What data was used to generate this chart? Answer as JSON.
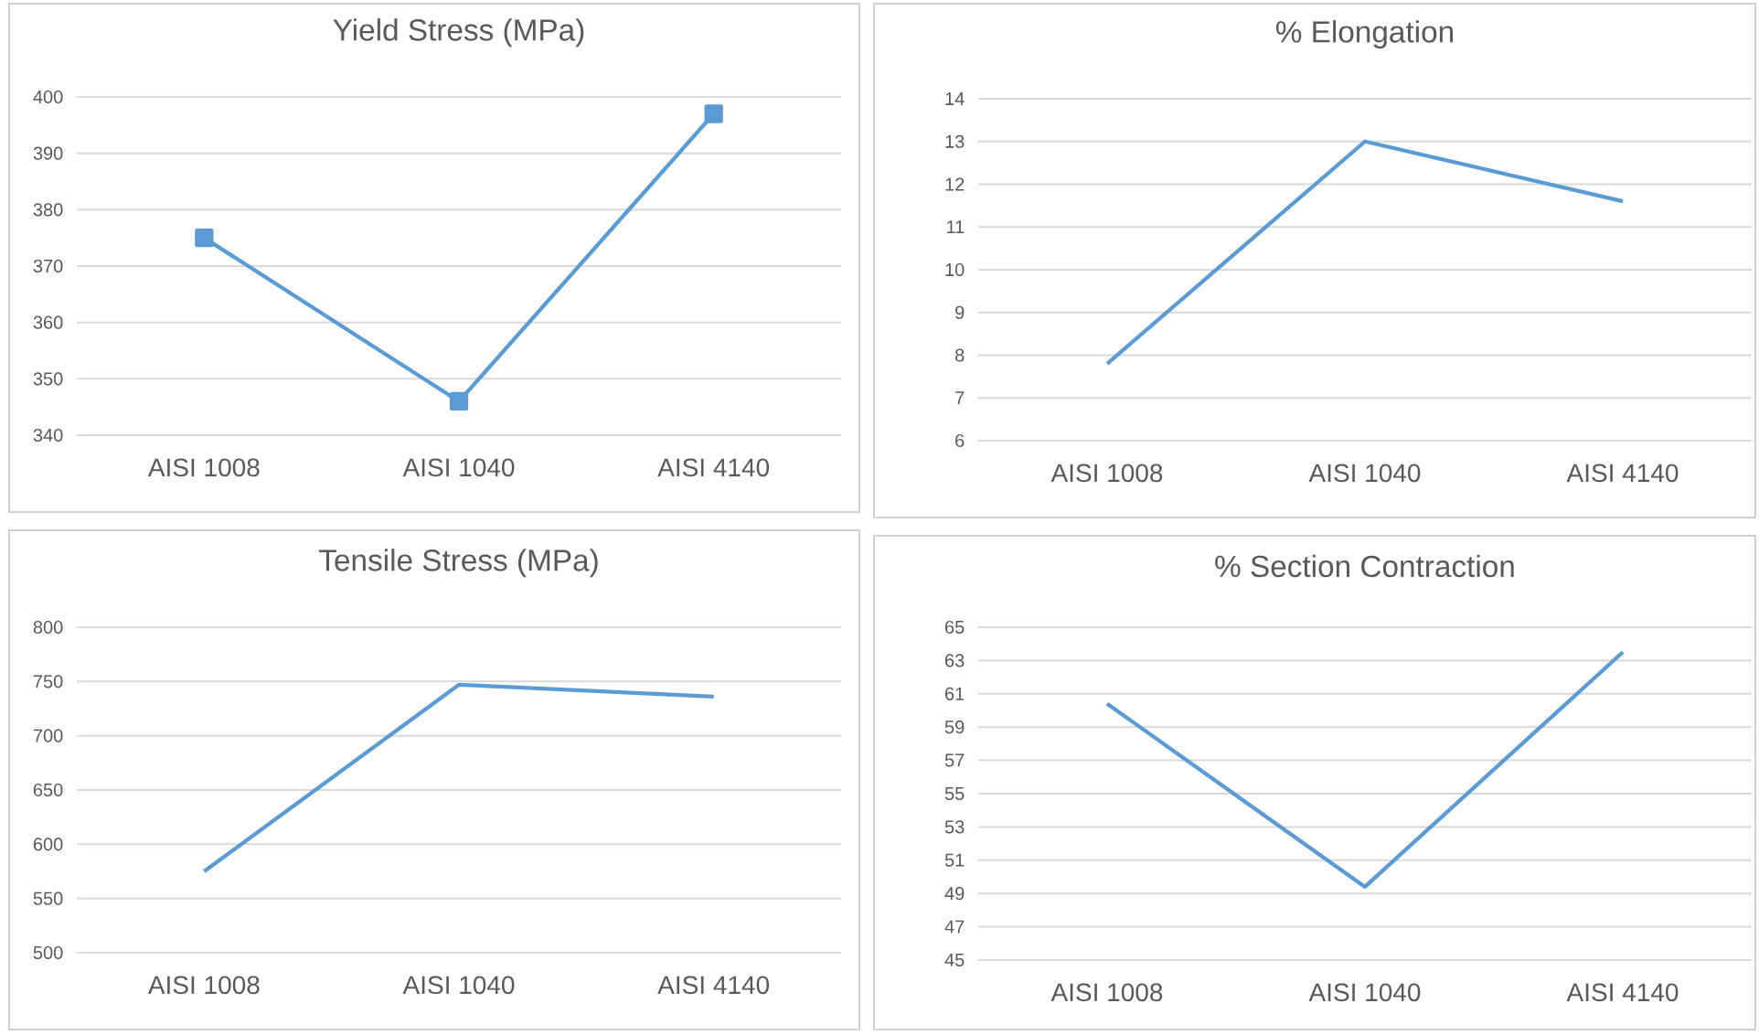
{
  "chart_data": [
    {
      "type": "line",
      "title": "Yield Stress (MPa)",
      "categories": [
        "AISI 1008",
        "AISI 1040",
        "AISI 4140"
      ],
      "marker": "square",
      "grid": "y",
      "ylim": [
        340,
        400
      ],
      "yticks": [
        340,
        350,
        360,
        370,
        380,
        390,
        400
      ],
      "series": [
        {
          "color": "#5b9bd5",
          "values": [
            375,
            346,
            397
          ]
        }
      ]
    },
    {
      "type": "line",
      "title": "% Elongation",
      "categories": [
        "AISI 1008",
        "AISI 1040",
        "AISI 4140"
      ],
      "grid": "y",
      "ylim": [
        6,
        14
      ],
      "yticks": [
        6,
        7,
        8,
        9,
        10,
        11,
        12,
        13,
        14
      ],
      "series": [
        {
          "color": "#5b9bd5",
          "values": [
            7.8,
            13,
            11.6
          ]
        }
      ]
    },
    {
      "type": "line",
      "title": "Tensile Stress (MPa)",
      "categories": [
        "AISI 1008",
        "AISI 1040",
        "AISI 4140"
      ],
      "grid": "y",
      "ylim": [
        500,
        800
      ],
      "yticks": [
        500,
        550,
        600,
        650,
        700,
        750,
        800
      ],
      "series": [
        {
          "color": "#5b9bd5",
          "values": [
            575,
            747,
            736
          ]
        }
      ]
    },
    {
      "type": "line",
      "title": "% Section Contraction",
      "categories": [
        "AISI 1008",
        "AISI 1040",
        "AISI 4140"
      ],
      "grid": "y",
      "ylim": [
        45,
        65
      ],
      "yticks": [
        45,
        47,
        49,
        51,
        53,
        55,
        57,
        59,
        61,
        63,
        65
      ],
      "series": [
        {
          "color": "#5b9bd5",
          "values": [
            60.4,
            49.4,
            63.5
          ]
        }
      ]
    }
  ]
}
